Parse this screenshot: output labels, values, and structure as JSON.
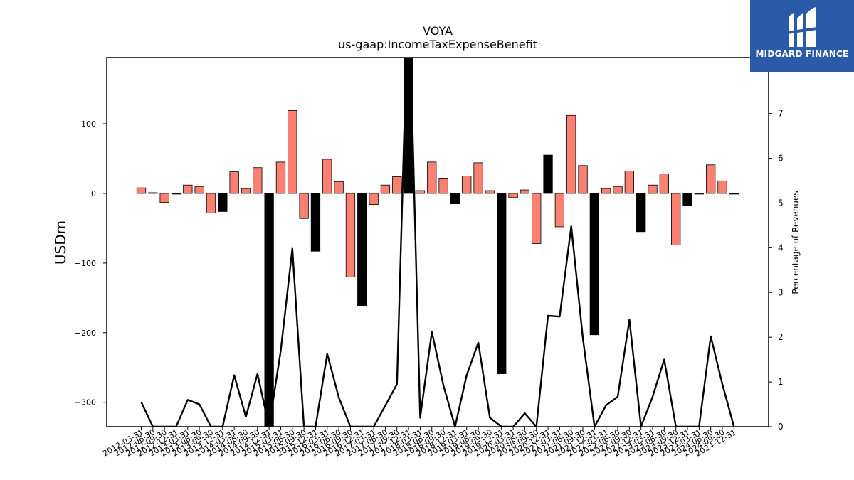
{
  "brand": {
    "name": "MIDGARD FINANCE",
    "logo_icon": "midgard-logo-icon",
    "color": "#2a5aa8"
  },
  "chart_data": {
    "type": "bar",
    "title": "VOYA",
    "subtitle": "us-gaap:IncomeTaxExpenseBenefit",
    "ylabel": "USDm",
    "y2label": "Percentage of Revenues",
    "ylim": [
      -335,
      195
    ],
    "y2lim": [
      0,
      8.25
    ],
    "yticks": [
      -300,
      -200,
      -100,
      0,
      100
    ],
    "y2ticks": [
      0,
      1,
      2,
      3,
      4,
      5,
      6,
      7
    ],
    "grid": false,
    "colors": {
      "positive": "#fa8072",
      "negative": "#000000",
      "line": "#000000"
    },
    "categories": [
      "2012-03-31",
      "2012-06-30",
      "2012-09-30",
      "2012-12-31",
      "2013-03-31",
      "2013-06-30",
      "2013-09-30",
      "2013-12-31",
      "2014-03-31",
      "2014-06-30",
      "2014-09-30",
      "2014-12-31",
      "2015-03-31",
      "2015-06-30",
      "2015-09-30",
      "2015-12-31",
      "2016-03-31",
      "2016-06-30",
      "2016-09-30",
      "2016-12-31",
      "2017-03-31",
      "2017-06-30",
      "2017-09-30",
      "2017-12-31",
      "2018-03-31",
      "2018-06-30",
      "2018-09-30",
      "2018-12-31",
      "2019-03-31",
      "2019-06-30",
      "2019-09-30",
      "2019-12-31",
      "2020-03-31",
      "2020-06-30",
      "2020-09-30",
      "2020-12-31",
      "2021-03-31",
      "2021-06-30",
      "2021-09-30",
      "2021-12-31",
      "2022-03-31",
      "2022-06-30",
      "2022-09-30",
      "2022-12-31",
      "2023-03-31",
      "2023-06-30",
      "2023-09-30",
      "2023-12-31",
      "2024-03-31",
      "2024-06-30",
      "2024-09-30",
      "2024-12-31"
    ],
    "series": [
      {
        "kind": "bar",
        "values": [
          8,
          1,
          -13,
          -1,
          12,
          10,
          -28,
          -26,
          31,
          7,
          37,
          -340,
          45,
          119,
          -36,
          -83,
          49,
          17,
          -120,
          -162,
          -16,
          12,
          24,
          240,
          4,
          45,
          21,
          -15,
          25,
          44,
          4,
          -259,
          -6,
          5,
          -72,
          55,
          -48,
          112,
          40,
          -203,
          7,
          10,
          32,
          -55,
          12,
          28,
          -74,
          -17,
          -1,
          41,
          18,
          -1
        ],
        "fill": [
          "pos",
          "neg",
          "pos",
          "neg",
          "pos",
          "pos",
          "pos",
          "neg",
          "pos",
          "pos",
          "pos",
          "neg",
          "pos",
          "pos",
          "pos",
          "neg",
          "pos",
          "pos",
          "pos",
          "neg",
          "pos",
          "pos",
          "pos",
          "neg",
          "pos",
          "pos",
          "pos",
          "neg",
          "pos",
          "pos",
          "pos",
          "neg",
          "pos",
          "pos",
          "pos",
          "neg",
          "pos",
          "pos",
          "pos",
          "neg",
          "pos",
          "pos",
          "pos",
          "neg",
          "pos",
          "pos",
          "pos",
          "neg",
          "pos",
          "pos",
          "pos",
          "neg"
        ]
      },
      {
        "kind": "line",
        "axis": "right",
        "values": [
          0.55,
          0,
          0,
          0,
          0.6,
          0.5,
          0,
          0,
          1.15,
          0.22,
          1.18,
          0,
          1.7,
          3.98,
          0,
          0,
          1.63,
          0.65,
          0,
          0,
          0,
          0.47,
          0.95,
          10,
          0.2,
          2.12,
          0.92,
          0,
          1.15,
          1.88,
          0.2,
          0,
          0,
          0.3,
          0,
          2.48,
          2.46,
          4.48,
          1.98,
          0,
          0.48,
          0.67,
          2.39,
          0,
          0.67,
          1.5,
          0,
          0,
          0,
          2.02,
          0.95,
          0
        ]
      }
    ]
  }
}
